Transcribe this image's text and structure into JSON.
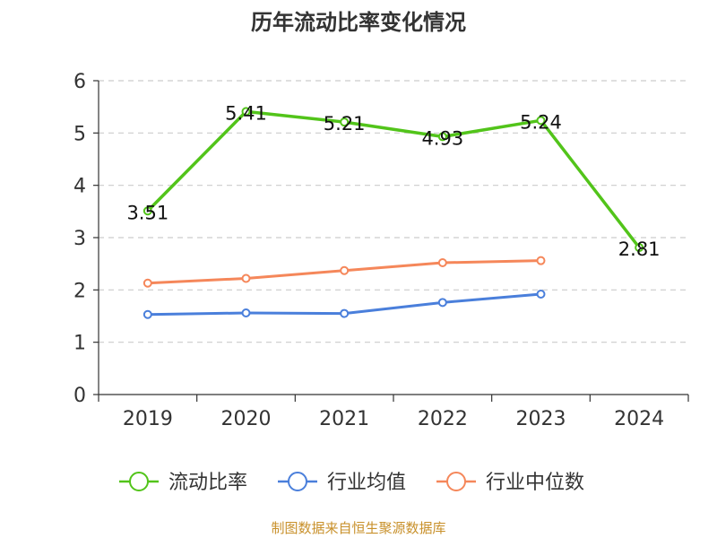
{
  "chart_data": {
    "type": "line",
    "title": "历年流动比率变化情况",
    "categories": [
      "2019",
      "2020",
      "2021",
      "2022",
      "2023",
      "2024"
    ],
    "ylim": [
      0,
      6
    ],
    "yticks": [
      "0",
      "1",
      "2",
      "3",
      "4",
      "5",
      "6"
    ],
    "grid": true,
    "legend_position": "bottom",
    "series": [
      {
        "name": "流动比率",
        "color": "#52c41a",
        "values": [
          3.51,
          5.41,
          5.21,
          4.93,
          5.24,
          2.81
        ],
        "labels": [
          "3.51",
          "5.41",
          "5.21",
          "4.93",
          "5.24",
          "2.81"
        ]
      },
      {
        "name": "行业均值",
        "color": "#4a7fdb",
        "values": [
          1.53,
          1.56,
          1.55,
          1.76,
          1.92,
          null
        ]
      },
      {
        "name": "行业中位数",
        "color": "#f5875a",
        "values": [
          2.13,
          2.22,
          2.37,
          2.52,
          2.56,
          null
        ]
      }
    ]
  },
  "source": "制图数据来自恒生聚源数据库"
}
